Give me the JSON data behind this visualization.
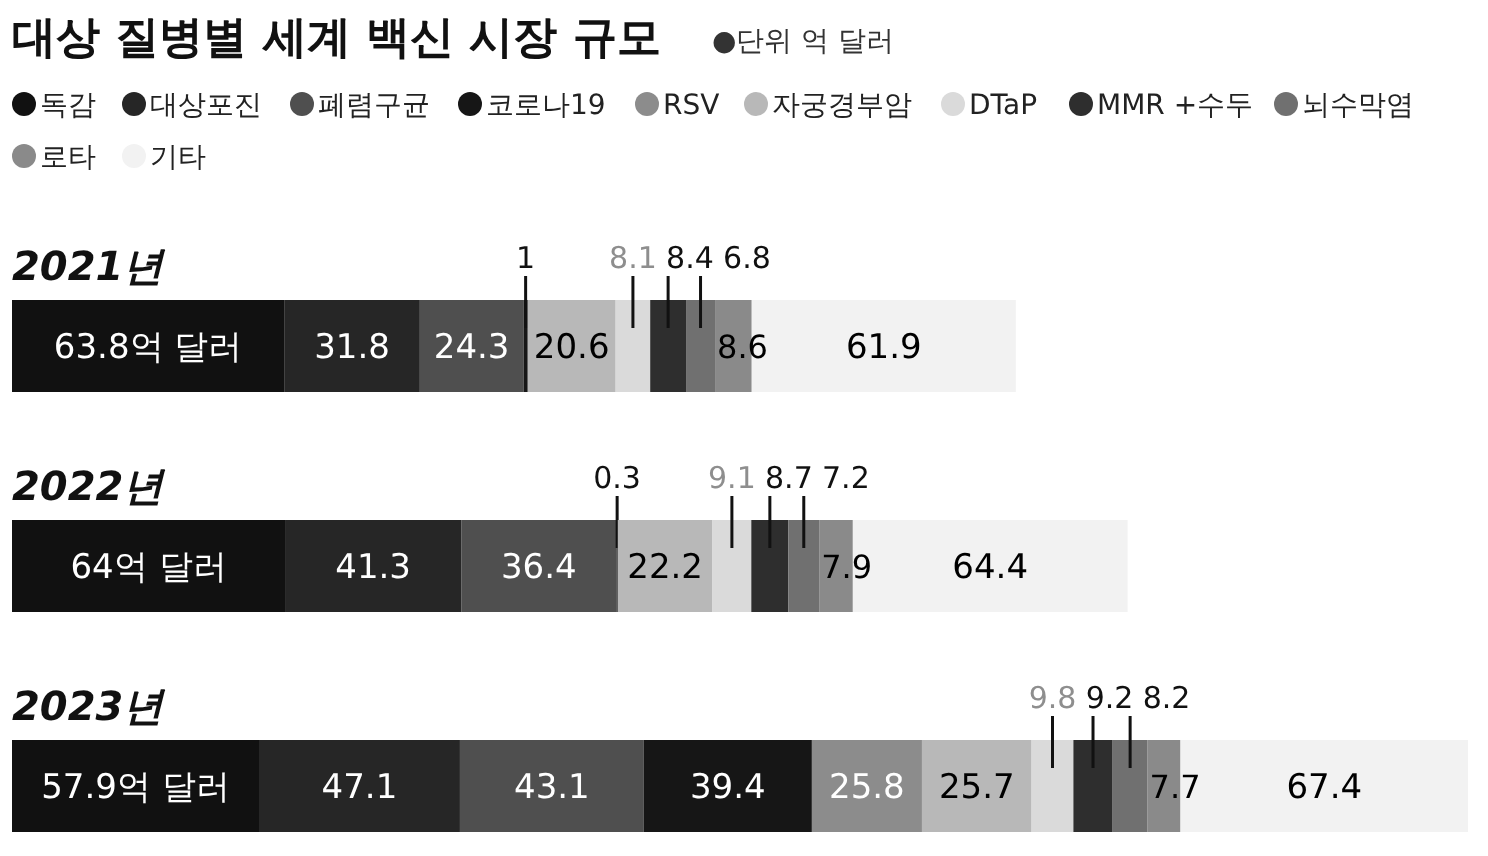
{
  "chart_data": {
    "type": "bar",
    "orientation": "horizontal",
    "stacked": true,
    "title": "대상 질병별 세계 백신 시장 규모",
    "subtitle": "●단위 억 달러",
    "legend": "top left",
    "data_labels": true,
    "categories": [
      "2021년",
      "2022년",
      "2023년"
    ],
    "series": [
      {
        "name": "독감",
        "color": "#111111",
        "values": [
          63.8,
          64,
          57.9
        ],
        "value_labels": [
          "63.8억 달러",
          "64억 달러",
          "57.9억 달러"
        ]
      },
      {
        "name": "대상포진",
        "color": "#262626",
        "values": [
          31.8,
          41.3,
          47.1
        ]
      },
      {
        "name": "폐렴구균",
        "color": "#4f4f4f",
        "values": [
          24.3,
          36.4,
          43.1
        ]
      },
      {
        "name": "코로나19",
        "color": "#161616",
        "values": [
          1,
          0.3,
          39.4
        ]
      },
      {
        "name": "RSV",
        "color": "#8c8c8c",
        "values": [
          null,
          null,
          25.8
        ]
      },
      {
        "name": "자궁경부암",
        "color": "#b8b8b8",
        "values": [
          20.6,
          22.2,
          25.7
        ]
      },
      {
        "name": "DTaP",
        "color": "#dadada",
        "values": [
          8.1,
          9.1,
          9.8
        ]
      },
      {
        "name": "MMR +수두",
        "color": "#2e2e2e",
        "values": [
          8.4,
          8.7,
          9.2
        ]
      },
      {
        "name": "뇌수막염",
        "color": "#707070",
        "values": [
          6.8,
          7.2,
          8.2
        ]
      },
      {
        "name": "로타",
        "color": "#8a8a8a",
        "values": [
          8.6,
          7.9,
          7.7
        ]
      },
      {
        "name": "기타",
        "color": "#f2f2f2",
        "values": [
          61.9,
          64.4,
          67.4
        ]
      }
    ]
  }
}
